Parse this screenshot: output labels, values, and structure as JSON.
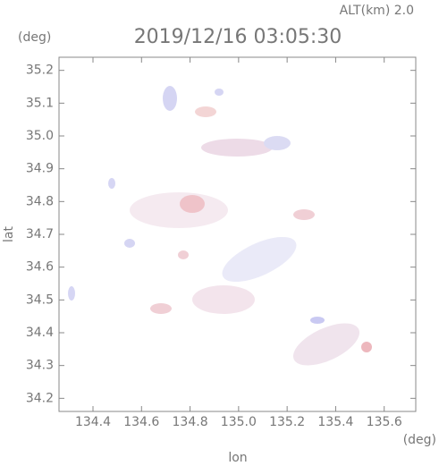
{
  "chart_data": {
    "type": "map",
    "title": "2019/12/16 03:05:30",
    "subtitle": "ALT(km)  2.0",
    "ylabel": "lat",
    "y_unit": "(deg)",
    "xlabel": "lon",
    "x_unit": "(deg)",
    "xlim": [
      134.26,
      135.73
    ],
    "ylim": [
      34.16,
      35.24
    ],
    "xticks": [
      134.4,
      134.6,
      134.8,
      {
        "value": 135,
        "label": "135.0"
      },
      135.2,
      135.4,
      135.6
    ],
    "yticks": [
      34.2,
      34.3,
      34.4,
      34.5,
      34.6,
      34.7,
      34.8,
      34.9,
      {
        "value": 35,
        "label": "35.0"
      },
      35.1,
      35.2
    ]
  }
}
